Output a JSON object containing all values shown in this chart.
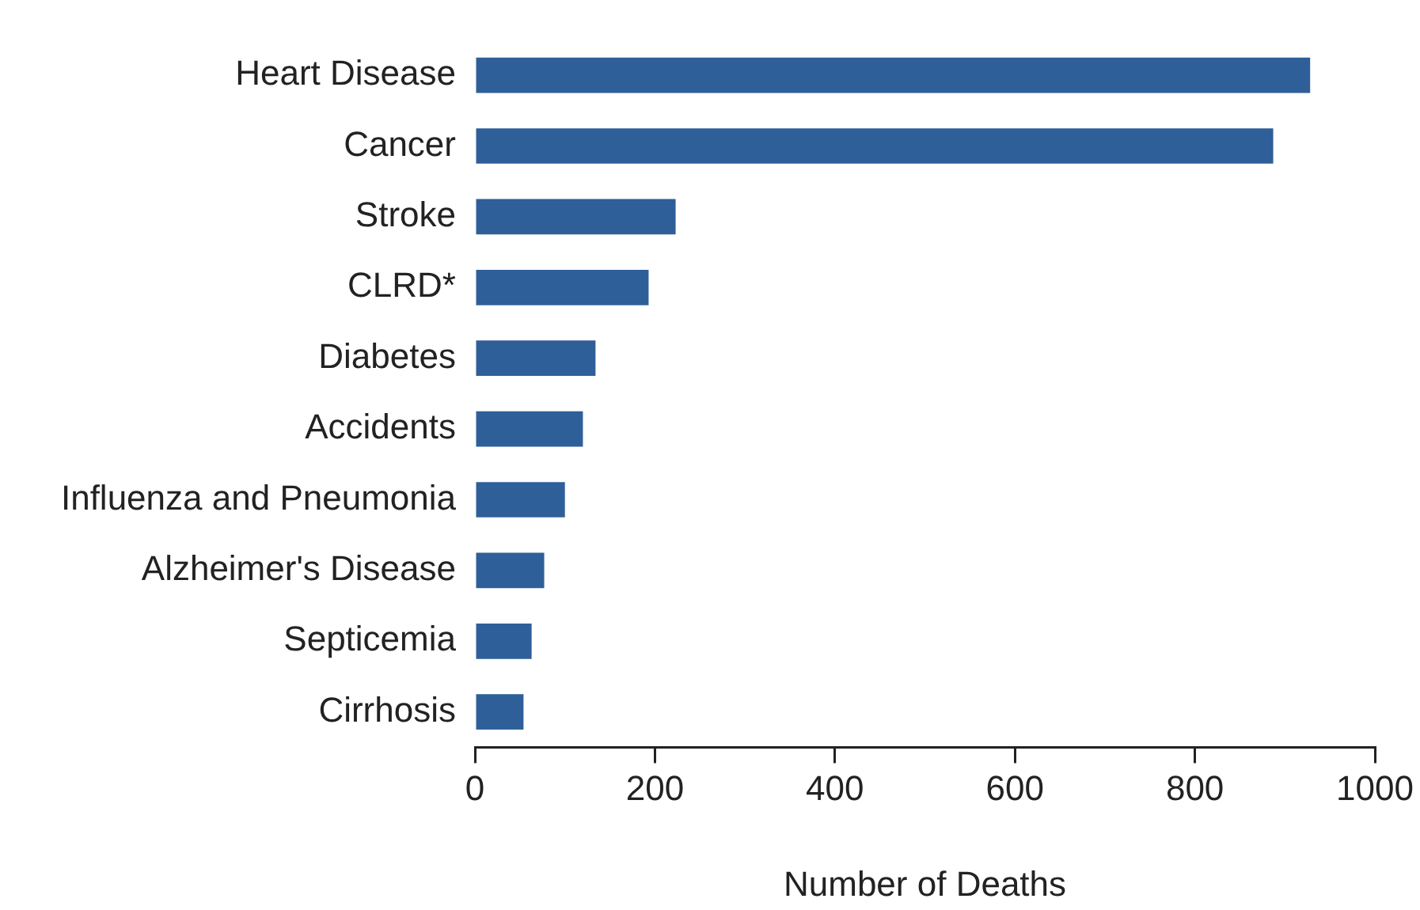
{
  "chart_data": {
    "type": "bar",
    "orientation": "horizontal",
    "xlabel": "Number of Deaths",
    "categories": [
      "Heart Disease",
      "Cancer",
      "Stroke",
      "CLRD*",
      "Diabetes",
      "Accidents",
      "Influenza and Pneumonia",
      "Alzheimer's Disease",
      "Septicemia",
      "Cirrhosis"
    ],
    "values": [
      928,
      887,
      223,
      193,
      134,
      120,
      100,
      77,
      63,
      54
    ],
    "color": "#2f5f98",
    "xlim": [
      0,
      1000
    ],
    "xticks": [
      0,
      200,
      400,
      600,
      800,
      1000
    ],
    "grid": false,
    "legend": false
  }
}
